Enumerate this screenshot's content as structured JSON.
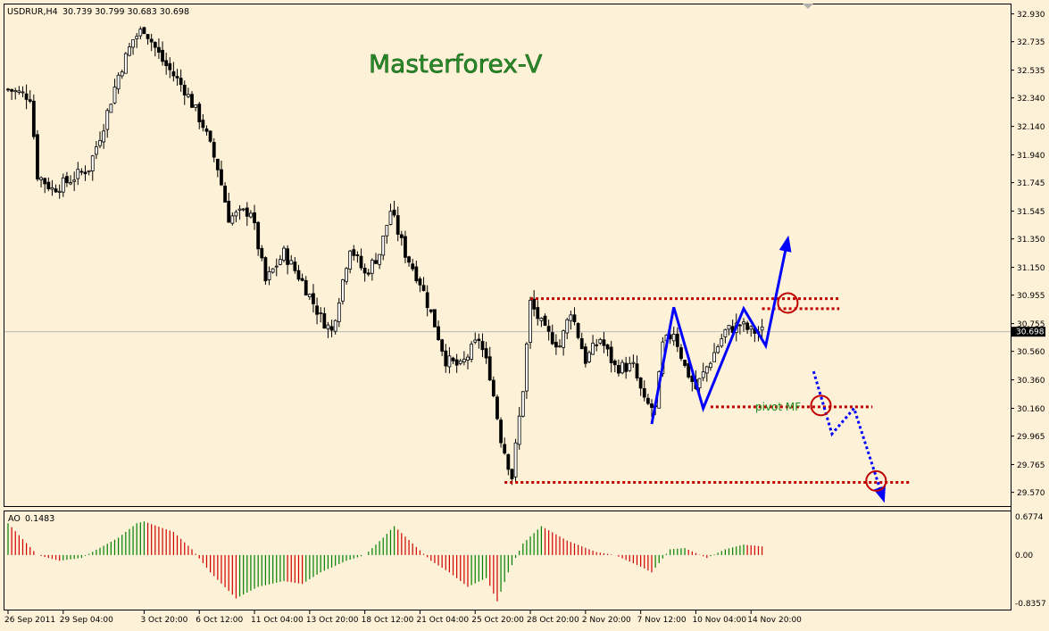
{
  "symbol_header": {
    "symbol": "USDRUR,H4",
    "ohlc": "30.739 30.799 30.683 30.698"
  },
  "watermark": "Masterforex-V",
  "annotation_label": "pivot MF",
  "current_price_label": "30.698",
  "indicator": {
    "name": "AO",
    "value": "0.1483",
    "ticks": [
      "0.6774",
      "0.00",
      "-0.8357"
    ]
  },
  "colors": {
    "background": "#fdf1d8",
    "candles": "#000000",
    "levels": "#c00000",
    "wave": "#0000ff",
    "label": "#1f8c1f",
    "ao_up": "#008000",
    "ao_down": "#d00000"
  },
  "chart_data": {
    "type": "candlestick",
    "title": "",
    "grid": false,
    "y_axis": {
      "range": [
        29.48,
        32.99
      ],
      "ticks": [
        "32.930",
        "32.735",
        "32.535",
        "32.340",
        "32.140",
        "31.940",
        "31.745",
        "31.545",
        "31.350",
        "31.150",
        "30.955",
        "30.755",
        "30.560",
        "30.360",
        "30.160",
        "29.965",
        "29.765",
        "29.570"
      ]
    },
    "x_axis": {
      "labels": [
        "26 Sep 2011",
        "29 Sep 04:00",
        "3 Oct 20:00",
        "6 Oct 12:00",
        "11 Oct 04:00",
        "13 Oct 20:00",
        "18 Oct 12:00",
        "21 Oct 04:00",
        "25 Oct 20:00",
        "28 Oct 20:00",
        "2 Nov 20:00",
        "7 Nov 12:00",
        "10 Nov 04:00",
        "14 Nov 20:00"
      ],
      "label_bar_index": [
        0,
        15,
        37,
        52,
        67,
        82,
        97,
        112,
        127,
        142,
        157,
        172,
        187,
        202
      ]
    },
    "close_path": [
      [
        0,
        32.4
      ],
      [
        6,
        32.35
      ],
      [
        8,
        31.8
      ],
      [
        12,
        31.7
      ],
      [
        16,
        31.75
      ],
      [
        22,
        31.85
      ],
      [
        26,
        32.15
      ],
      [
        30,
        32.5
      ],
      [
        34,
        32.75
      ],
      [
        37,
        32.83
      ],
      [
        42,
        32.6
      ],
      [
        48,
        32.4
      ],
      [
        53,
        32.15
      ],
      [
        57,
        31.85
      ],
      [
        60,
        31.5
      ],
      [
        66,
        31.55
      ],
      [
        70,
        31.05
      ],
      [
        75,
        31.25
      ],
      [
        80,
        31.05
      ],
      [
        85,
        30.8
      ],
      [
        88,
        30.7
      ],
      [
        93,
        31.3
      ],
      [
        97,
        31.1
      ],
      [
        101,
        31.25
      ],
      [
        104,
        31.55
      ],
      [
        108,
        31.25
      ],
      [
        112,
        31.05
      ],
      [
        116,
        30.75
      ],
      [
        119,
        30.5
      ],
      [
        123,
        30.45
      ],
      [
        128,
        30.65
      ],
      [
        131,
        30.4
      ],
      [
        134,
        29.95
      ],
      [
        137,
        29.68
      ],
      [
        140,
        30.3
      ],
      [
        142,
        30.9
      ],
      [
        146,
        30.7
      ],
      [
        150,
        30.6
      ],
      [
        153,
        30.85
      ],
      [
        157,
        30.5
      ],
      [
        161,
        30.65
      ],
      [
        165,
        30.45
      ],
      [
        170,
        30.45
      ],
      [
        173,
        30.2
      ],
      [
        176,
        30.15
      ],
      [
        178,
        30.6
      ],
      [
        181,
        30.7
      ],
      [
        184,
        30.45
      ],
      [
        187,
        30.3
      ],
      [
        191,
        30.5
      ],
      [
        195,
        30.7
      ],
      [
        199,
        30.75
      ],
      [
        202,
        30.7
      ],
      [
        205,
        30.7
      ]
    ],
    "levels": [
      {
        "price": 30.93,
        "from_bar": 142,
        "to_bar": 226
      },
      {
        "price": 30.86,
        "from_bar": 205,
        "to_bar": 226
      },
      {
        "price": 30.17,
        "from_bar": 191,
        "to_bar": 235
      },
      {
        "price": 29.64,
        "from_bar": 135,
        "to_bar": 245
      }
    ],
    "wave_solid": [
      [
        175,
        30.05
      ],
      [
        181,
        30.87
      ],
      [
        189,
        30.16
      ],
      [
        200,
        30.86
      ],
      [
        206,
        30.6
      ],
      [
        212,
        31.35
      ]
    ],
    "wave_dotted": [
      [
        219,
        30.42
      ],
      [
        224,
        29.98
      ],
      [
        230,
        30.16
      ],
      [
        238,
        29.52
      ]
    ],
    "circles": [
      [
        212,
        30.9
      ],
      [
        221,
        30.18
      ],
      [
        236,
        29.65
      ]
    ],
    "ao_keypoints": [
      [
        0,
        0.55
      ],
      [
        8,
        0.0
      ],
      [
        14,
        -0.1
      ],
      [
        20,
        -0.05
      ],
      [
        30,
        0.3
      ],
      [
        35,
        0.55
      ],
      [
        37,
        0.58
      ],
      [
        45,
        0.4
      ],
      [
        50,
        0.1
      ],
      [
        55,
        -0.3
      ],
      [
        62,
        -0.75
      ],
      [
        68,
        -0.55
      ],
      [
        75,
        -0.45
      ],
      [
        80,
        -0.5
      ],
      [
        85,
        -0.3
      ],
      [
        92,
        -0.1
      ],
      [
        97,
        0.0
      ],
      [
        102,
        0.3
      ],
      [
        105,
        0.5
      ],
      [
        110,
        0.2
      ],
      [
        115,
        -0.1
      ],
      [
        120,
        -0.3
      ],
      [
        125,
        -0.55
      ],
      [
        130,
        -0.4
      ],
      [
        133,
        -0.8
      ],
      [
        136,
        -0.3
      ],
      [
        140,
        0.2
      ],
      [
        145,
        0.5
      ],
      [
        152,
        0.25
      ],
      [
        160,
        0.05
      ],
      [
        165,
        0.0
      ],
      [
        172,
        -0.2
      ],
      [
        175,
        -0.3
      ],
      [
        180,
        0.1
      ],
      [
        184,
        0.12
      ],
      [
        190,
        -0.05
      ],
      [
        195,
        0.1
      ],
      [
        200,
        0.18
      ],
      [
        205,
        0.15
      ]
    ]
  }
}
